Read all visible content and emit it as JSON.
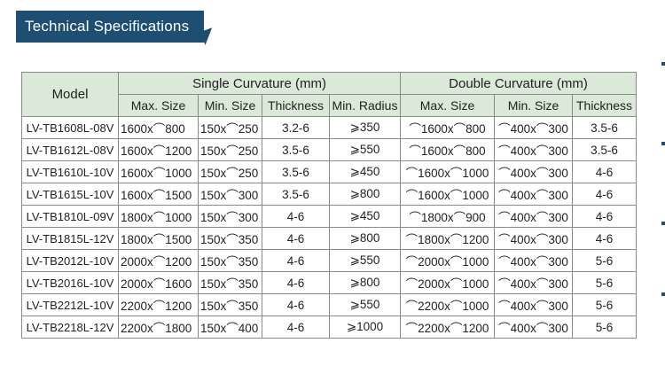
{
  "title": "Technical Specifications",
  "table": {
    "model_header": "Model",
    "group_headers": [
      "Single Curvature   (mm)",
      "Double Curvature   (mm)"
    ],
    "sub_headers": [
      "Max. Size",
      "Min. Size",
      "Thickness",
      "Min. Radius",
      "Max. Size",
      "Min. Size",
      "Thickness"
    ],
    "rows": [
      [
        "LV-TB1608L-08V",
        "1600x⌒800",
        "150x⌒250",
        "3.2-6",
        "⩾350",
        "⌒1600x⌒800",
        "⌒400x⌒300",
        "3.5-6"
      ],
      [
        "LV-TB1612L-08V",
        "1600x⌒1200",
        "150x⌒250",
        "3.5-6",
        "⩾550",
        "⌒1600x⌒800",
        "⌒400x⌒300",
        "3.5-6"
      ],
      [
        "LV-TB1610L-10V",
        "1600x⌒1000",
        "150x⌒250",
        "3.5-6",
        "⩾450",
        "⌒1600x⌒1000",
        "⌒400x⌒300",
        "4-6"
      ],
      [
        "LV-TB1615L-10V",
        "1600x⌒1500",
        "150x⌒300",
        "3.5-6",
        "⩾800",
        "⌒1600x⌒1000",
        "⌒400x⌒300",
        "4-6"
      ],
      [
        "LV-TB1810L-09V",
        "1800x⌒1000",
        "150x⌒300",
        "4-6",
        "⩾450",
        "⌒1800x⌒900",
        "⌒400x⌒300",
        "4-6"
      ],
      [
        "LV-TB1815L-12V",
        "1800x⌒1500",
        "150x⌒350",
        "4-6",
        "⩾800",
        "⌒1800x⌒1200",
        "⌒400x⌒300",
        "4-6"
      ],
      [
        "LV-TB2012L-10V",
        "2000x⌒1200",
        "150x⌒350",
        "4-6",
        "⩾550",
        "⌒2000x⌒1000",
        "⌒400x⌒300",
        "5-6"
      ],
      [
        "LV-TB2016L-10V",
        "2000x⌒1600",
        "150x⌒350",
        "4-6",
        "⩾800",
        "⌒2000x⌒1000",
        "⌒400x⌒300",
        "5-6"
      ],
      [
        "LV-TB2212L-10V",
        "2200x⌒1200",
        "150x⌒350",
        "4-6",
        "⩾550",
        "⌒2200x⌒1000",
        "⌒400x⌒300",
        "5-6"
      ],
      [
        "LV-TB2218L-12V",
        "2200x⌒1800",
        "150x⌒400",
        "4-6",
        "⩾1000",
        "⌒2200x⌒1200",
        "⌒400x⌒300",
        "5-6"
      ]
    ]
  },
  "colors": {
    "banner": "#1e4f73",
    "header_bg": "#dbe9d8"
  }
}
